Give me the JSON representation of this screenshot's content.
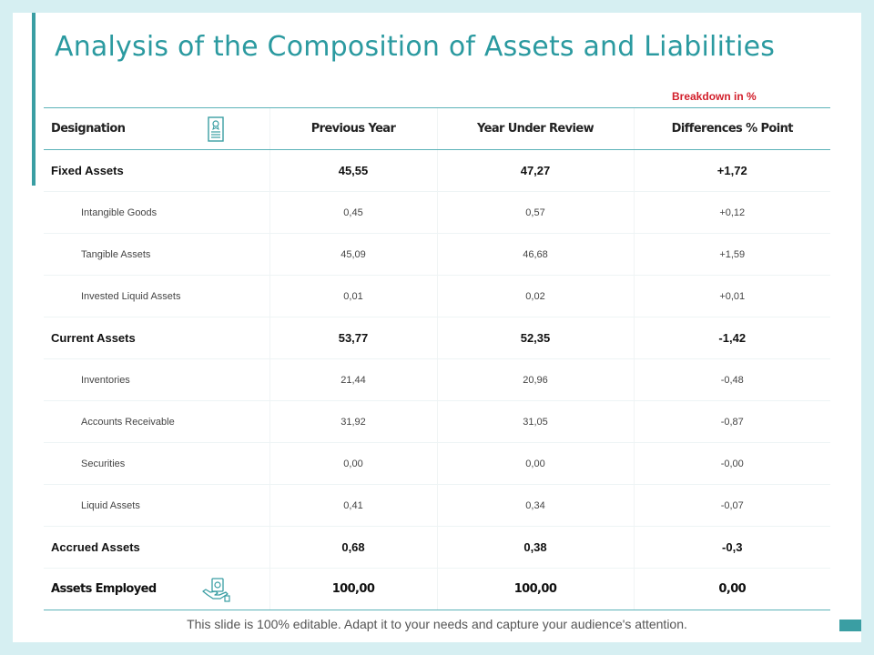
{
  "title": "Analysis of the Composition of Assets and Liabilities",
  "breakdown_note": "Breakdown in %",
  "header": {
    "designation": "Designation",
    "previous_year": "Previous Year",
    "year_under_review": "Year Under Review",
    "differences": "Differences % Point"
  },
  "rows": [
    {
      "label": "Fixed Assets",
      "prev": "45,55",
      "review": "47,27",
      "diff": "+1,72"
    },
    {
      "label": "Intangible Goods",
      "prev": "0,45",
      "review": "0,57",
      "diff": "+0,12"
    },
    {
      "label": "Tangible Assets",
      "prev": "45,09",
      "review": "46,68",
      "diff": "+1,59"
    },
    {
      "label": "Invested Liquid Assets",
      "prev": "0,01",
      "review": "0,02",
      "diff": "+0,01"
    },
    {
      "label": "Current Assets",
      "prev": "53,77",
      "review": "52,35",
      "diff": "-1,42"
    },
    {
      "label": "Inventories",
      "prev": "21,44",
      "review": "20,96",
      "diff": "-0,48"
    },
    {
      "label": "Accounts Receivable",
      "prev": "31,92",
      "review": "31,05",
      "diff": "-0,87"
    },
    {
      "label": "Securities",
      "prev": "0,00",
      "review": "0,00",
      "diff": "-0,00"
    },
    {
      "label": "Liquid Assets",
      "prev": "0,41",
      "review": "0,34",
      "diff": "-0,07"
    },
    {
      "label": "Accrued Assets",
      "prev": "0,68",
      "review": "0,38",
      "diff": "-0,3"
    }
  ],
  "total": {
    "label": "Assets Employed",
    "prev": "100,00",
    "review": "100,00",
    "diff": "0,00"
  },
  "footer": "This slide is 100% editable. Adapt it to your needs and capture your audience's attention.",
  "colors": {
    "accent": "#3a9ea3",
    "title": "#2b9aa0",
    "note": "#d21f2b",
    "background": "#d6eff2"
  },
  "icons": {
    "designation": "certificate-icon",
    "total": "hand-money-icon"
  }
}
